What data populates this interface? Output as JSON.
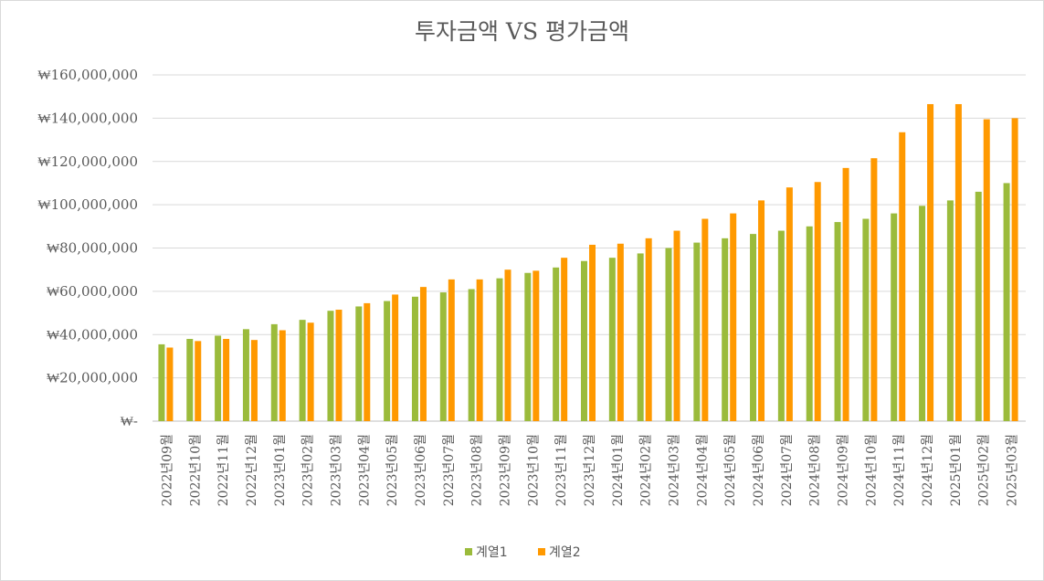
{
  "chart_data": {
    "type": "bar",
    "title": "투자금액 VS 평가금액",
    "xlabel": "",
    "ylabel": "",
    "ylim": [
      0,
      160000000
    ],
    "ytick_labels": [
      "₩-",
      "₩20,000,000",
      "₩40,000,000",
      "₩60,000,000",
      "₩80,000,000",
      "₩100,000,000",
      "₩120,000,000",
      "₩140,000,000",
      "₩160,000,000"
    ],
    "grid": true,
    "legend_position": "bottom",
    "categories": [
      "2022년09월",
      "2022년10월",
      "2022년11월",
      "2022년12월",
      "2023년01월",
      "2023년02월",
      "2023년03월",
      "2023년04월",
      "2023년05월",
      "2023년06월",
      "2023년07월",
      "2023년08월",
      "2023년09월",
      "2023년10월",
      "2023년11월",
      "2023년12월",
      "2024년01월",
      "2024년02월",
      "2024년03월",
      "2024년04월",
      "2024년05월",
      "2024년06월",
      "2024년07월",
      "2024년08월",
      "2024년09월",
      "2024년10월",
      "2024년11월",
      "2024년12월",
      "2025년01월",
      "2025년02월",
      "2025년03월"
    ],
    "series": [
      {
        "name": "계열1",
        "color": "#9bbb3b",
        "values": [
          35500000,
          38000000,
          39500000,
          42500000,
          44800000,
          46800000,
          51000000,
          53000000,
          55500000,
          57500000,
          59500000,
          61000000,
          66000000,
          68500000,
          71000000,
          74000000,
          75500000,
          77500000,
          80000000,
          82500000,
          84500000,
          86500000,
          88000000,
          90000000,
          92000000,
          93500000,
          96000000,
          99500000,
          102000000,
          106000000,
          110000000
        ]
      },
      {
        "name": "계열2",
        "color": "#ff9900",
        "values": [
          34000000,
          37000000,
          38000000,
          37500000,
          42000000,
          45500000,
          51500000,
          54500000,
          58500000,
          62000000,
          65500000,
          65500000,
          70000000,
          69500000,
          75500000,
          81500000,
          82000000,
          84500000,
          88000000,
          93500000,
          96000000,
          102000000,
          108000000,
          110500000,
          117000000,
          121500000,
          133500000,
          146500000,
          146500000,
          139500000,
          140000000
        ]
      }
    ]
  }
}
